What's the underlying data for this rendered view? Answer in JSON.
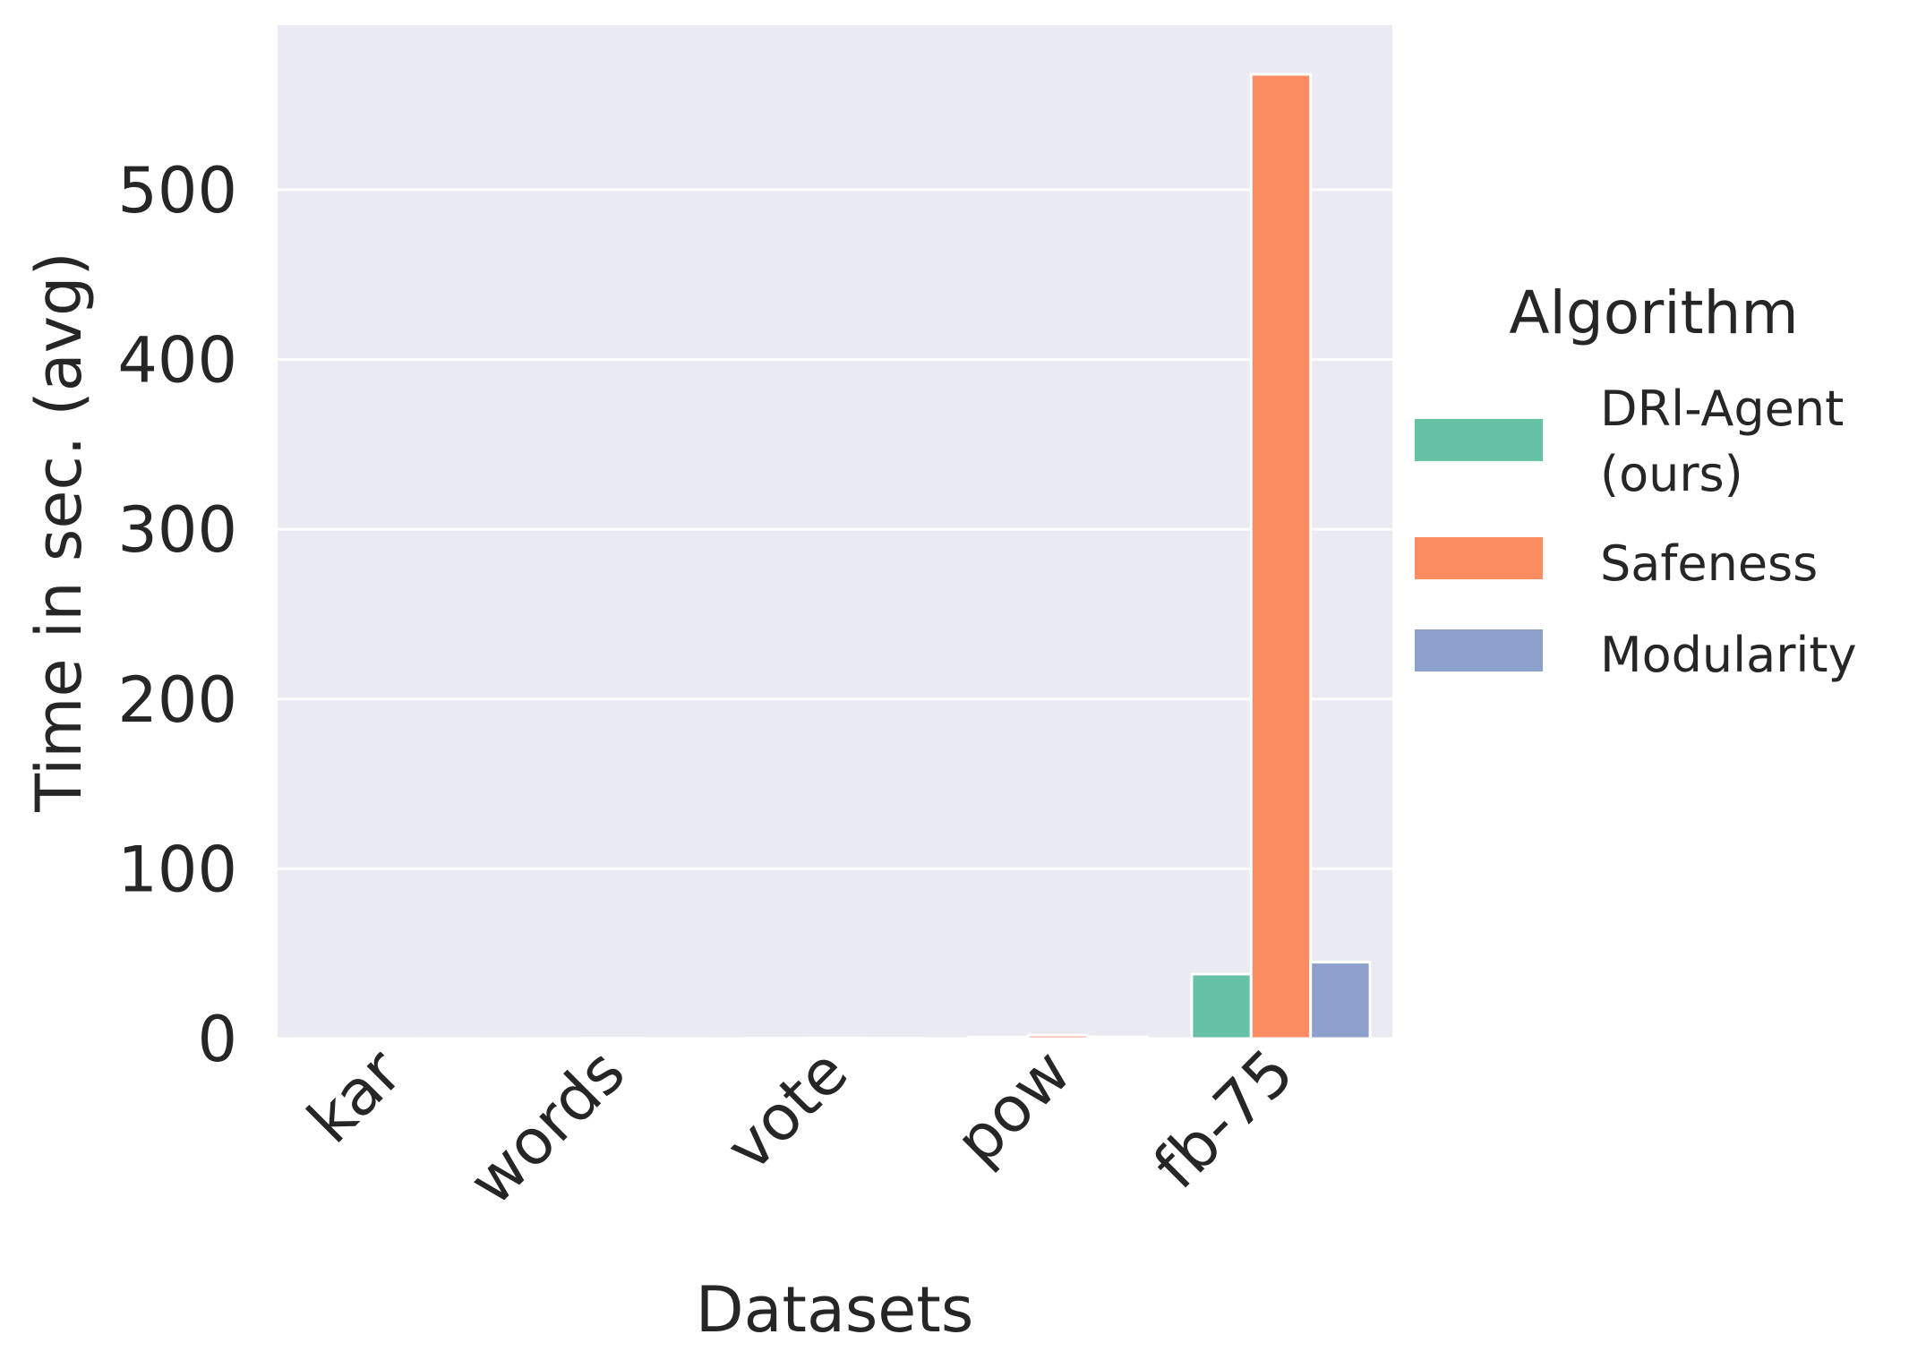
{
  "chart_data": {
    "type": "bar",
    "title": "",
    "xlabel": "Datasets",
    "ylabel": "Time in sec. (avg)",
    "ylim": [
      0,
      597
    ],
    "yticks": [
      0,
      100,
      200,
      300,
      400,
      500
    ],
    "categories": [
      "kar",
      "words",
      "vote",
      "pow",
      "fb-75"
    ],
    "series": [
      {
        "name": "DRl-Agent (ours)",
        "color": "#66c2a5",
        "values": [
          0.1,
          0.1,
          0.2,
          0.9,
          38
        ]
      },
      {
        "name": "Safeness",
        "color": "#fc8d62",
        "values": [
          0.1,
          0.2,
          0.3,
          2,
          568
        ]
      },
      {
        "name": "Modularity",
        "color": "#8da0cb",
        "values": [
          0.1,
          0.1,
          0.2,
          1,
          45
        ]
      }
    ],
    "grid": true,
    "legend": {
      "title": "Algorithm",
      "position": "right"
    },
    "colors": {
      "background": "#eaeaf2",
      "grid": "#ffffff",
      "text": "#262626"
    }
  }
}
